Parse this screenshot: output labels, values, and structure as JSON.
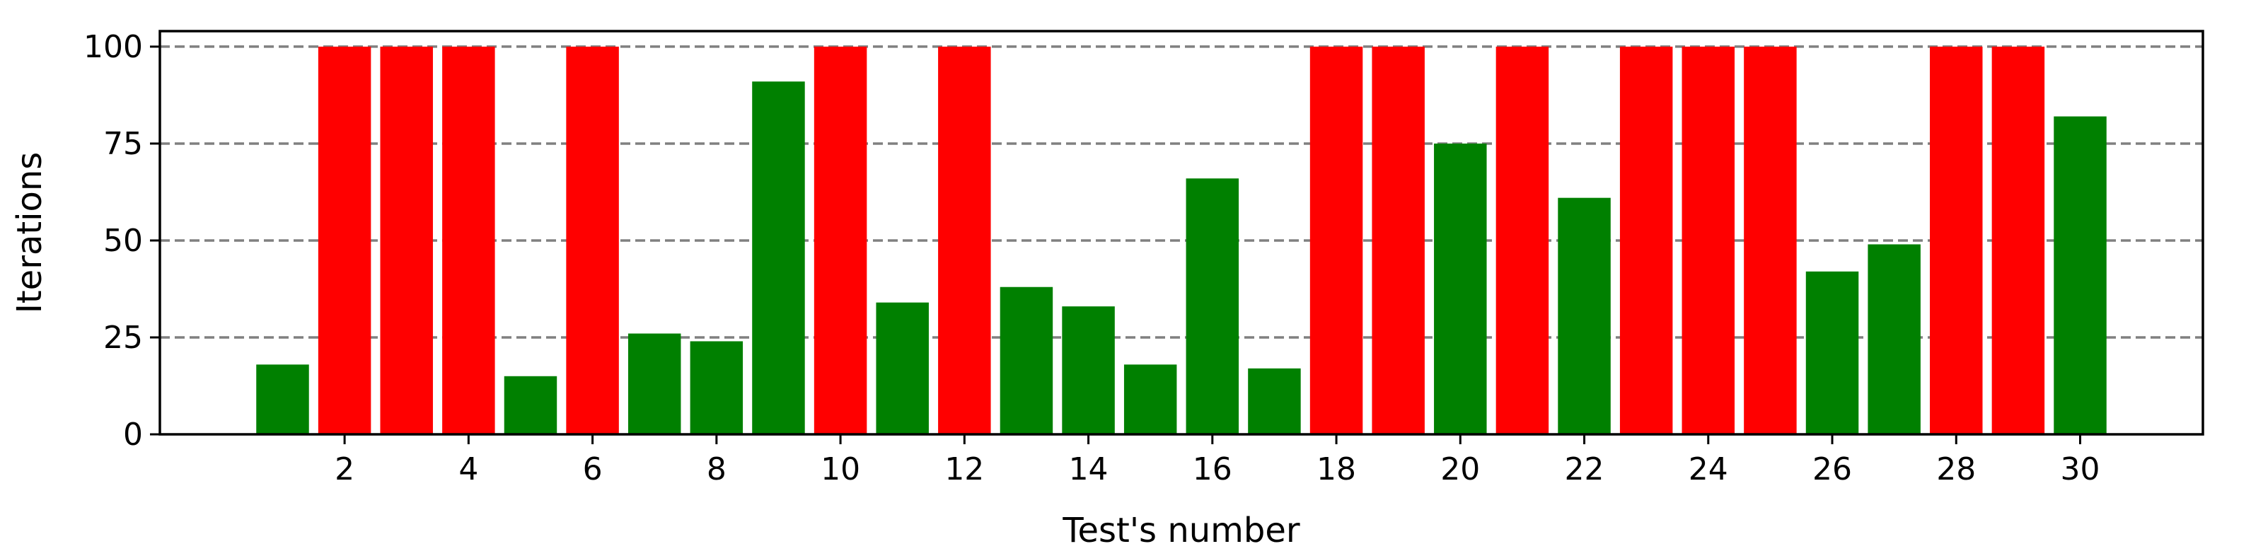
{
  "chart_data": {
    "type": "bar",
    "xlabel": "Test's number",
    "ylabel": "Iterations",
    "ylim": [
      0,
      104
    ],
    "xlim": [
      -0.98,
      31.98
    ],
    "grid": "y-dashed",
    "x_ticks": [
      2,
      4,
      6,
      8,
      10,
      12,
      14,
      16,
      18,
      20,
      22,
      24,
      26,
      28,
      30
    ],
    "y_ticks": [
      0,
      25,
      50,
      75,
      100
    ],
    "colors": {
      "converged": "#008000",
      "max_iterations": "#ff0000",
      "grid": "#808080"
    },
    "categories": [
      1,
      2,
      3,
      4,
      5,
      6,
      7,
      8,
      9,
      10,
      11,
      12,
      13,
      14,
      15,
      16,
      17,
      18,
      19,
      20,
      21,
      22,
      23,
      24,
      25,
      26,
      27,
      28,
      29,
      30
    ],
    "values": [
      18,
      100,
      100,
      100,
      15,
      100,
      26,
      24,
      91,
      100,
      34,
      100,
      38,
      33,
      18,
      66,
      17,
      100,
      100,
      75,
      100,
      61,
      100,
      100,
      100,
      42,
      49,
      100,
      100,
      82
    ],
    "bar_colors": [
      "#008000",
      "#ff0000",
      "#ff0000",
      "#ff0000",
      "#008000",
      "#ff0000",
      "#008000",
      "#008000",
      "#008000",
      "#ff0000",
      "#008000",
      "#ff0000",
      "#008000",
      "#008000",
      "#008000",
      "#008000",
      "#008000",
      "#ff0000",
      "#ff0000",
      "#008000",
      "#ff0000",
      "#008000",
      "#ff0000",
      "#ff0000",
      "#ff0000",
      "#008000",
      "#008000",
      "#ff0000",
      "#ff0000",
      "#008000"
    ]
  }
}
